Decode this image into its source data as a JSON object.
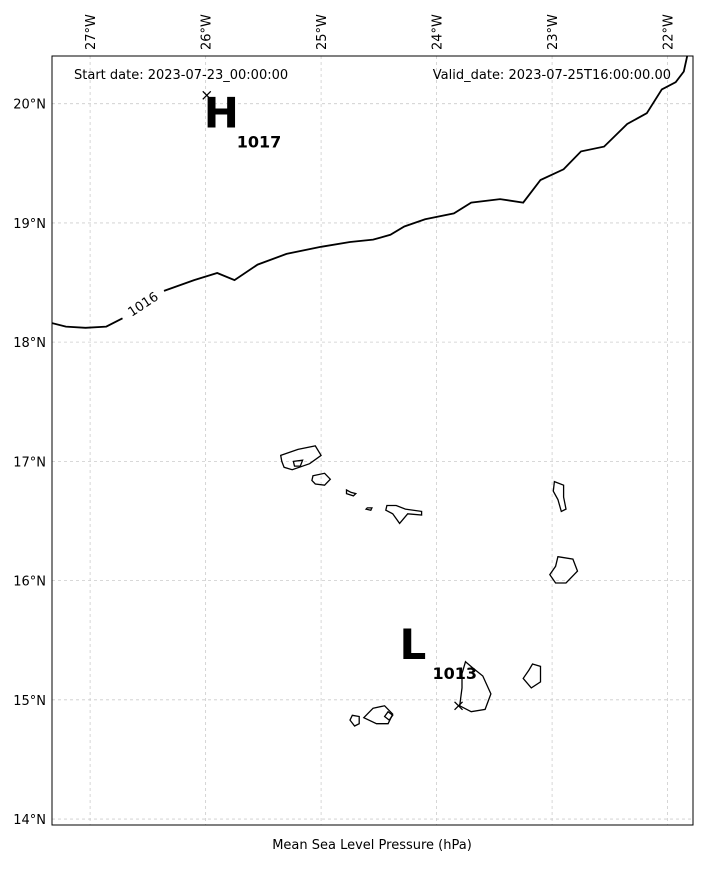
{
  "header": {
    "start_label": "Start date: 2023-07-23_00:00:00",
    "valid_label": "Valid_date: 2023-07-25T16:00:00.00"
  },
  "caption": "Mean Sea Level Pressure (hPa)",
  "map": {
    "lon_range": [
      -27.33,
      -21.78
    ],
    "lat_range": [
      13.95,
      20.4
    ],
    "gridlines": true,
    "lon_ticks": [
      {
        "value": -27,
        "label": "27°W"
      },
      {
        "value": -26,
        "label": "26°W"
      },
      {
        "value": -25,
        "label": "25°W"
      },
      {
        "value": -24,
        "label": "24°W"
      },
      {
        "value": -23,
        "label": "23°W"
      },
      {
        "value": -22,
        "label": "22°W"
      }
    ],
    "lat_ticks": [
      {
        "value": 20,
        "label": "20°N"
      },
      {
        "value": 19,
        "label": "19°N"
      },
      {
        "value": 18,
        "label": "18°N"
      },
      {
        "value": 17,
        "label": "17°N"
      },
      {
        "value": 16,
        "label": "16°N"
      },
      {
        "value": 15,
        "label": "15°N"
      },
      {
        "value": 14,
        "label": "14°N"
      }
    ],
    "isobar": {
      "level_label": "1016",
      "points": [
        [
          -27.33,
          18.16
        ],
        [
          -27.21,
          18.13
        ],
        [
          -27.04,
          18.12
        ],
        [
          -26.86,
          18.13
        ],
        [
          -26.72,
          18.2
        ],
        [
          -26.62,
          18.31
        ],
        [
          -26.36,
          18.43
        ],
        [
          -26.1,
          18.52
        ],
        [
          -25.9,
          18.58
        ],
        [
          -25.75,
          18.52
        ],
        [
          -25.55,
          18.65
        ],
        [
          -25.3,
          18.74
        ],
        [
          -25.0,
          18.8
        ],
        [
          -24.75,
          18.84
        ],
        [
          -24.55,
          18.86
        ],
        [
          -24.4,
          18.9
        ],
        [
          -24.28,
          18.97
        ],
        [
          -24.1,
          19.03
        ],
        [
          -23.85,
          19.08
        ],
        [
          -23.7,
          19.17
        ],
        [
          -23.45,
          19.2
        ],
        [
          -23.25,
          19.17
        ],
        [
          -23.1,
          19.36
        ],
        [
          -22.9,
          19.45
        ],
        [
          -22.75,
          19.6
        ],
        [
          -22.55,
          19.64
        ],
        [
          -22.35,
          19.83
        ],
        [
          -22.18,
          19.92
        ],
        [
          -22.05,
          20.12
        ],
        [
          -21.93,
          20.18
        ],
        [
          -21.86,
          20.27
        ],
        [
          -21.83,
          20.4
        ]
      ]
    },
    "centers": [
      {
        "kind": "H",
        "value": "1017",
        "lon": -25.99,
        "lat": 20.07
      },
      {
        "kind": "L",
        "value": "1013",
        "lon": -23.81,
        "lat": 14.95
      }
    ],
    "islands": [
      {
        "name": "santo-antao",
        "pts": [
          [
            -25.35,
            17.05
          ],
          [
            -25.2,
            17.1
          ],
          [
            -25.05,
            17.13
          ],
          [
            -25.0,
            17.05
          ],
          [
            -25.1,
            16.98
          ],
          [
            -25.25,
            16.93
          ],
          [
            -25.32,
            16.95
          ],
          [
            -25.34,
            17.0
          ]
        ],
        "inner": [
          [
            -25.24,
            17.0
          ],
          [
            -25.16,
            17.01
          ],
          [
            -25.18,
            16.96
          ],
          [
            -25.23,
            16.96
          ]
        ]
      },
      {
        "name": "sao-vicente",
        "pts": [
          [
            -25.07,
            16.88
          ],
          [
            -24.97,
            16.9
          ],
          [
            -24.92,
            16.85
          ],
          [
            -24.97,
            16.8
          ],
          [
            -25.05,
            16.81
          ],
          [
            -25.08,
            16.84
          ]
        ]
      },
      {
        "name": "santa-luzia",
        "pts": [
          [
            -24.78,
            16.76
          ],
          [
            -24.74,
            16.74
          ],
          [
            -24.7,
            16.73
          ],
          [
            -24.72,
            16.71
          ],
          [
            -24.78,
            16.73
          ]
        ]
      },
      {
        "name": "raso",
        "pts": [
          [
            -24.6,
            16.61
          ],
          [
            -24.56,
            16.61
          ],
          [
            -24.57,
            16.59
          ],
          [
            -24.61,
            16.6
          ]
        ]
      },
      {
        "name": "sao-nicolau",
        "pts": [
          [
            -24.43,
            16.63
          ],
          [
            -24.35,
            16.63
          ],
          [
            -24.27,
            16.6
          ],
          [
            -24.13,
            16.58
          ],
          [
            -24.13,
            16.55
          ],
          [
            -24.25,
            16.56
          ],
          [
            -24.32,
            16.48
          ],
          [
            -24.38,
            16.56
          ],
          [
            -24.44,
            16.59
          ]
        ]
      },
      {
        "name": "sal",
        "pts": [
          [
            -22.98,
            16.83
          ],
          [
            -22.9,
            16.8
          ],
          [
            -22.9,
            16.7
          ],
          [
            -22.88,
            16.6
          ],
          [
            -22.92,
            16.58
          ],
          [
            -22.95,
            16.68
          ],
          [
            -22.99,
            16.75
          ]
        ]
      },
      {
        "name": "boa-vista",
        "pts": [
          [
            -22.95,
            16.2
          ],
          [
            -22.82,
            16.18
          ],
          [
            -22.78,
            16.08
          ],
          [
            -22.88,
            15.98
          ],
          [
            -22.97,
            15.98
          ],
          [
            -23.02,
            16.05
          ],
          [
            -22.97,
            16.12
          ]
        ]
      },
      {
        "name": "maio",
        "pts": [
          [
            -23.17,
            15.3
          ],
          [
            -23.1,
            15.28
          ],
          [
            -23.1,
            15.15
          ],
          [
            -23.18,
            15.1
          ],
          [
            -23.25,
            15.18
          ],
          [
            -23.2,
            15.25
          ]
        ]
      },
      {
        "name": "santiago",
        "pts": [
          [
            -23.75,
            15.32
          ],
          [
            -23.69,
            15.27
          ],
          [
            -23.6,
            15.2
          ],
          [
            -23.53,
            15.05
          ],
          [
            -23.58,
            14.92
          ],
          [
            -23.7,
            14.9
          ],
          [
            -23.8,
            14.95
          ],
          [
            -23.78,
            15.1
          ],
          [
            -23.78,
            15.22
          ]
        ]
      },
      {
        "name": "fogo",
        "pts": [
          [
            -24.55,
            14.93
          ],
          [
            -24.45,
            14.95
          ],
          [
            -24.38,
            14.88
          ],
          [
            -24.42,
            14.8
          ],
          [
            -24.52,
            14.8
          ],
          [
            -24.63,
            14.85
          ]
        ],
        "inner": [
          [
            -24.42,
            14.9
          ],
          [
            -24.38,
            14.87
          ],
          [
            -24.41,
            14.83
          ],
          [
            -24.45,
            14.86
          ]
        ]
      },
      {
        "name": "brava",
        "pts": [
          [
            -24.73,
            14.87
          ],
          [
            -24.67,
            14.86
          ],
          [
            -24.67,
            14.8
          ],
          [
            -24.71,
            14.78
          ],
          [
            -24.75,
            14.83
          ]
        ]
      }
    ]
  }
}
